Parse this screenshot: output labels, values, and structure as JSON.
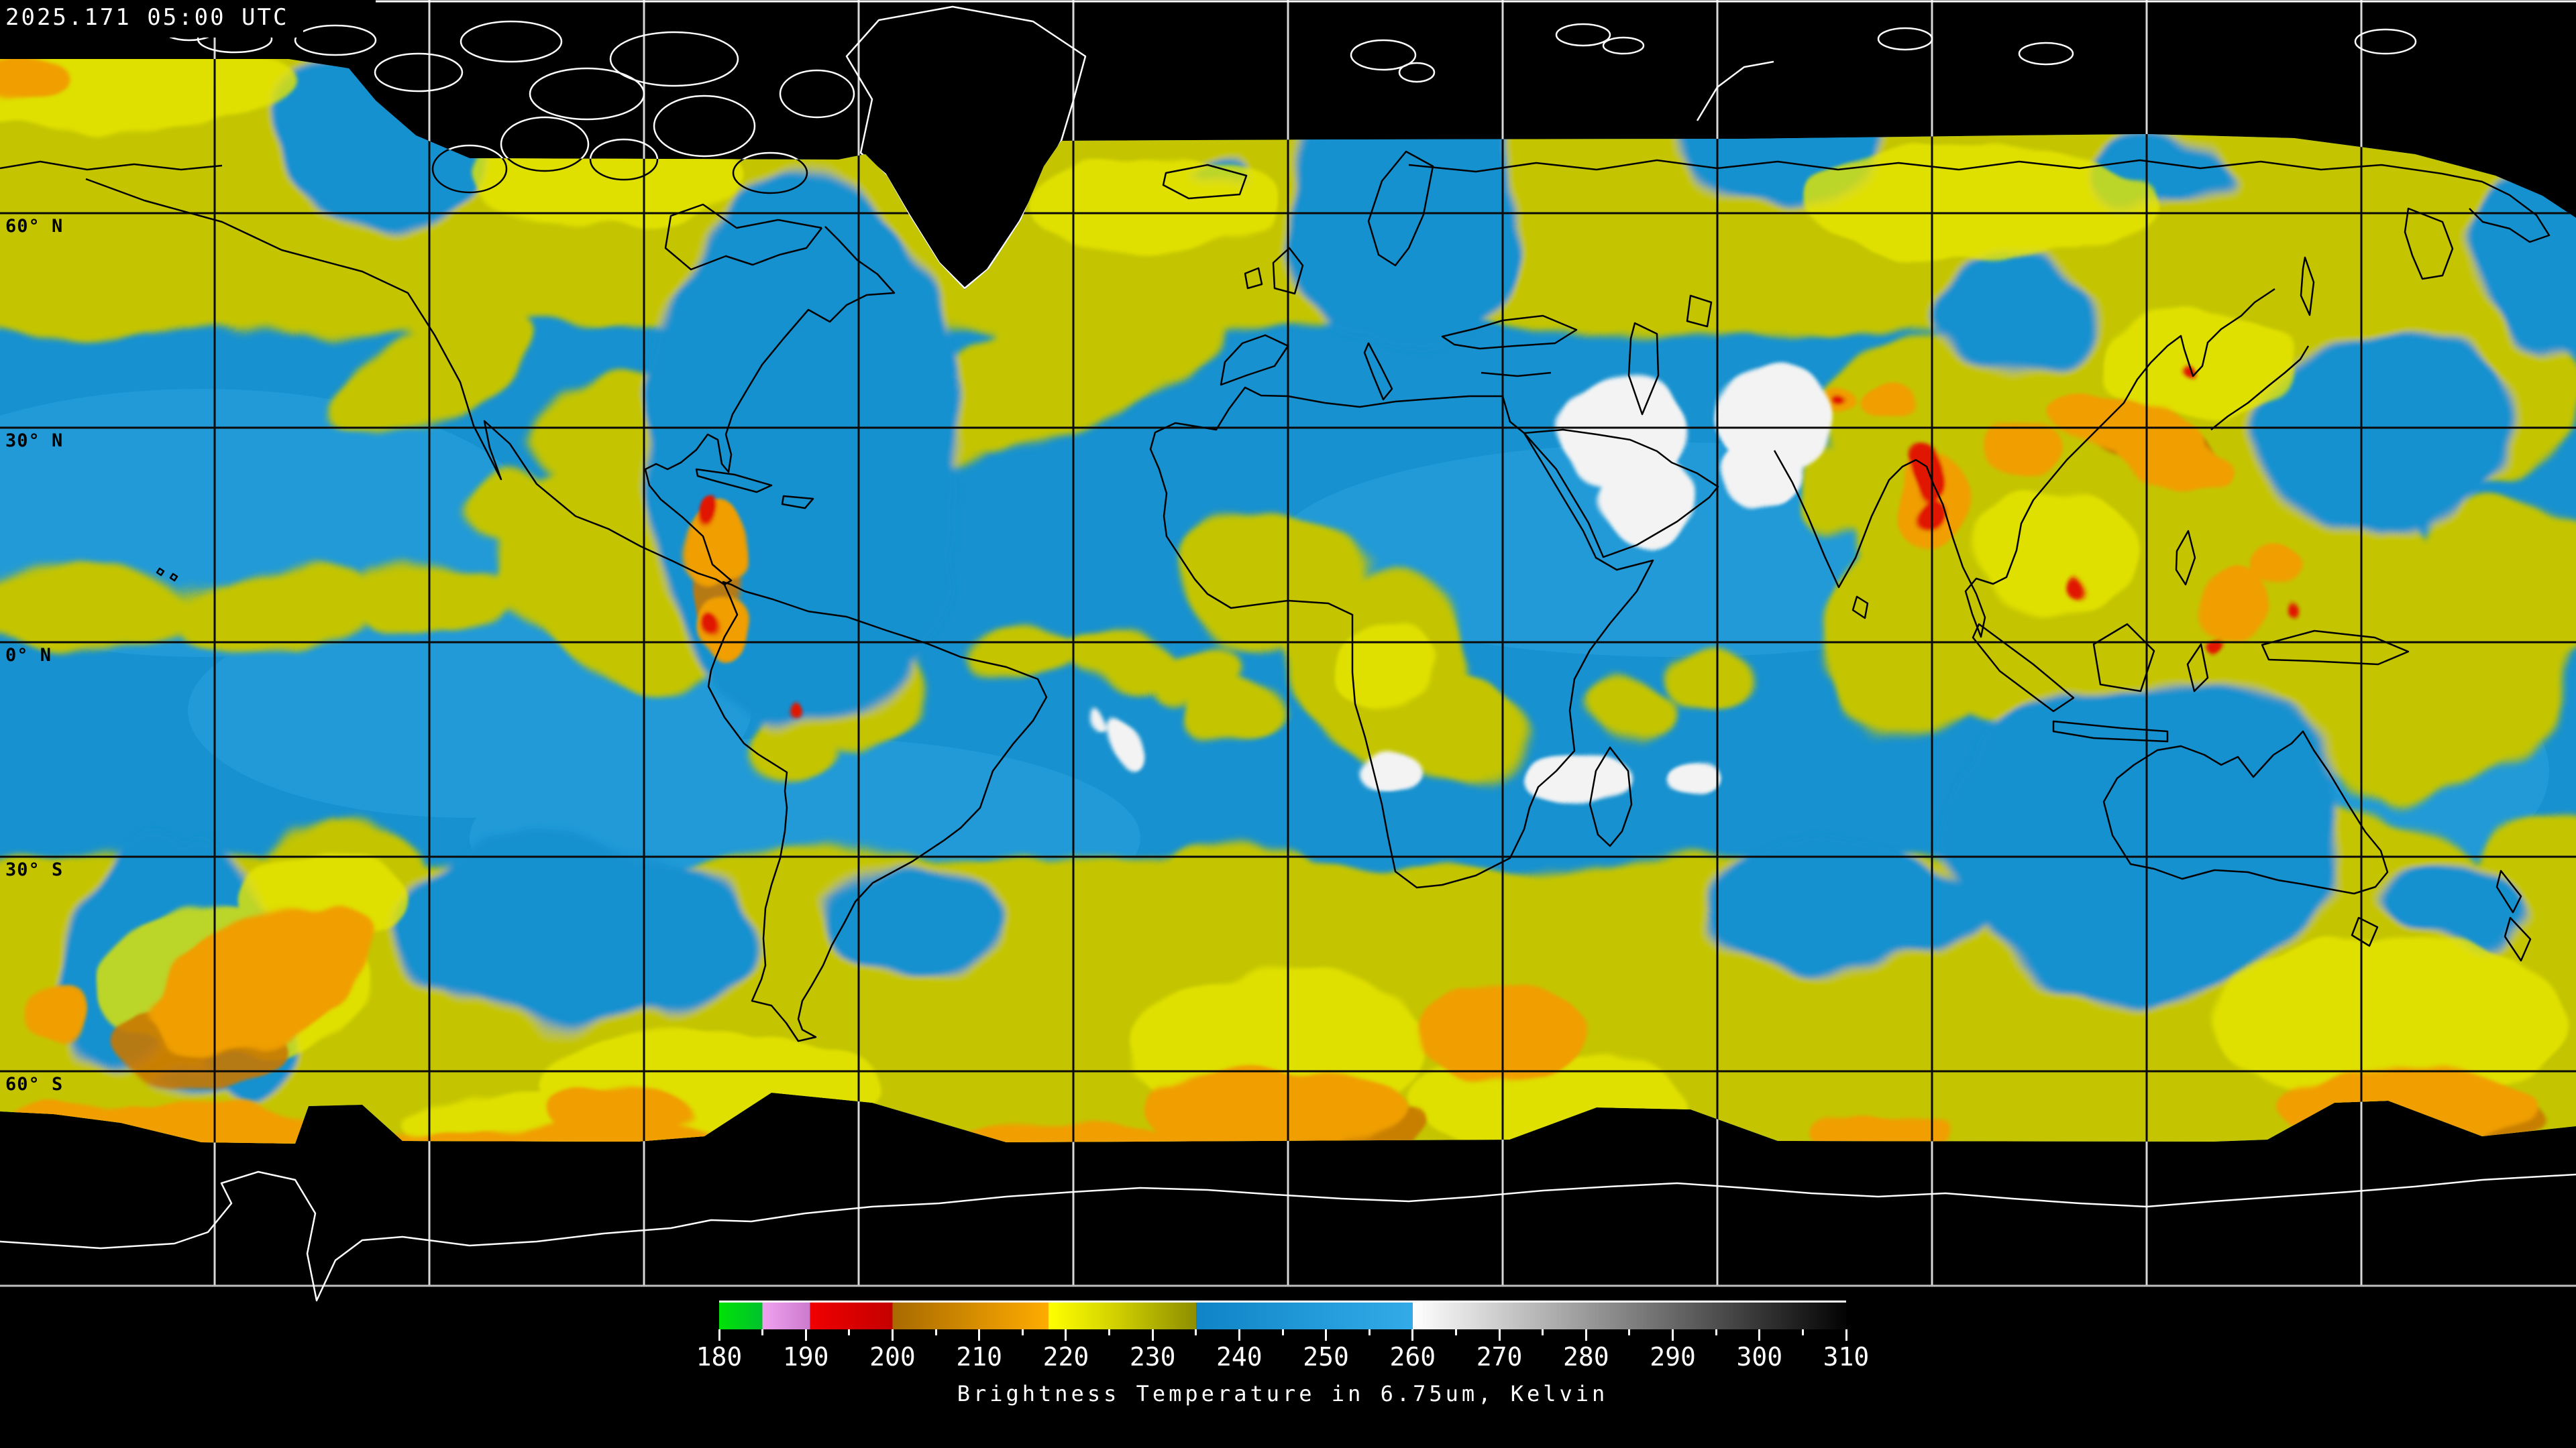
{
  "header": {
    "timestamp": "2025.171 05:00 UTC"
  },
  "map": {
    "lat_labels": [
      {
        "text": "60° N"
      },
      {
        "text": "30° N"
      },
      {
        "text": "0° N"
      },
      {
        "text": "30° S"
      },
      {
        "text": "60° S"
      }
    ],
    "colors": {
      "no_data": "#000000",
      "coastline_on_data": "#000000",
      "coastline_on_void": "#ffffff",
      "graticule_on_data": "#000000",
      "graticule_on_void": "#d8d8d8",
      "ocean_base": "#1791CF",
      "cloud_yellow": "#C4C500",
      "cloud_bright_yellow": "#E6E600",
      "cloud_orange": "#F09E00",
      "cloud_deep_orange": "#C97700",
      "cloud_red": "#E11400",
      "warm_surface_white": "#F3F3F3"
    }
  },
  "colorbar": {
    "title": "Brightness Temperature in 6.75um, Kelvin",
    "tick_min": 180,
    "tick_max": 310,
    "minor_step": 5,
    "ticks": [
      "180",
      "190",
      "200",
      "210",
      "220",
      "230",
      "240",
      "250",
      "260",
      "270",
      "280",
      "290",
      "300",
      "310"
    ],
    "gradient": [
      {
        "at": 180,
        "color": "#00E206"
      },
      {
        "at": 185,
        "color": "#00C22E"
      },
      {
        "at": 185,
        "color": "#F0A2F0"
      },
      {
        "at": 190.5,
        "color": "#CC7ACC"
      },
      {
        "at": 190.5,
        "color": "#F00000"
      },
      {
        "at": 200,
        "color": "#C40000"
      },
      {
        "at": 200,
        "color": "#A86A00"
      },
      {
        "at": 218,
        "color": "#FFAC00"
      },
      {
        "at": 218,
        "color": "#FFFF00"
      },
      {
        "at": 224,
        "color": "#DCDC00"
      },
      {
        "at": 235,
        "color": "#8E8E00"
      },
      {
        "at": 235,
        "color": "#0F84C6"
      },
      {
        "at": 260,
        "color": "#33ABE8"
      },
      {
        "at": 260,
        "color": "#FFFFFF"
      },
      {
        "at": 310,
        "color": "#030303"
      }
    ]
  }
}
